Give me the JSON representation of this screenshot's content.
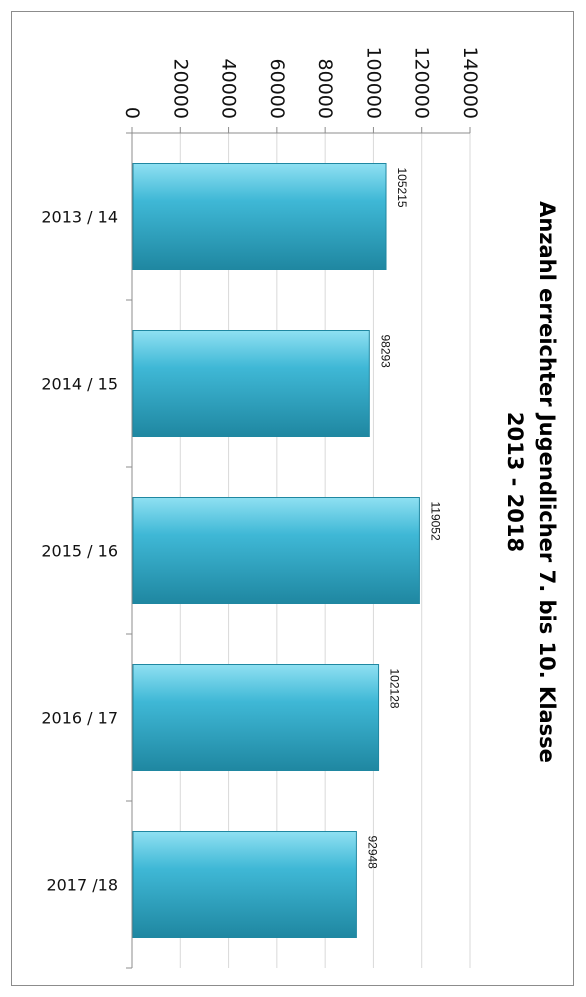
{
  "chart_data": {
    "type": "bar",
    "orientation": "horizontal",
    "title": "Anzahl erreichter Jugendlicher 7. bis 10. Klasse",
    "subtitle": "2013 - 2018",
    "categories": [
      "2013 / 14",
      "2014 / 15",
      "2015 / 16",
      "2016 / 17",
      "2017 /18"
    ],
    "values": [
      105215,
      98293,
      119052,
      102128,
      92948
    ],
    "value_labels": [
      "105215",
      "98293",
      "119052",
      "102128",
      "92948"
    ],
    "axis_ticks": [
      "0",
      "20000",
      "40000",
      "60000",
      "80000",
      "100000",
      "120000",
      "140000"
    ],
    "xlim": [
      0,
      140000
    ],
    "grid": true,
    "legend": "none",
    "bar_color": "#3fb8d6",
    "bar_highlight": "#8fe0f2",
    "bar_shadow": "#1f87a1"
  }
}
